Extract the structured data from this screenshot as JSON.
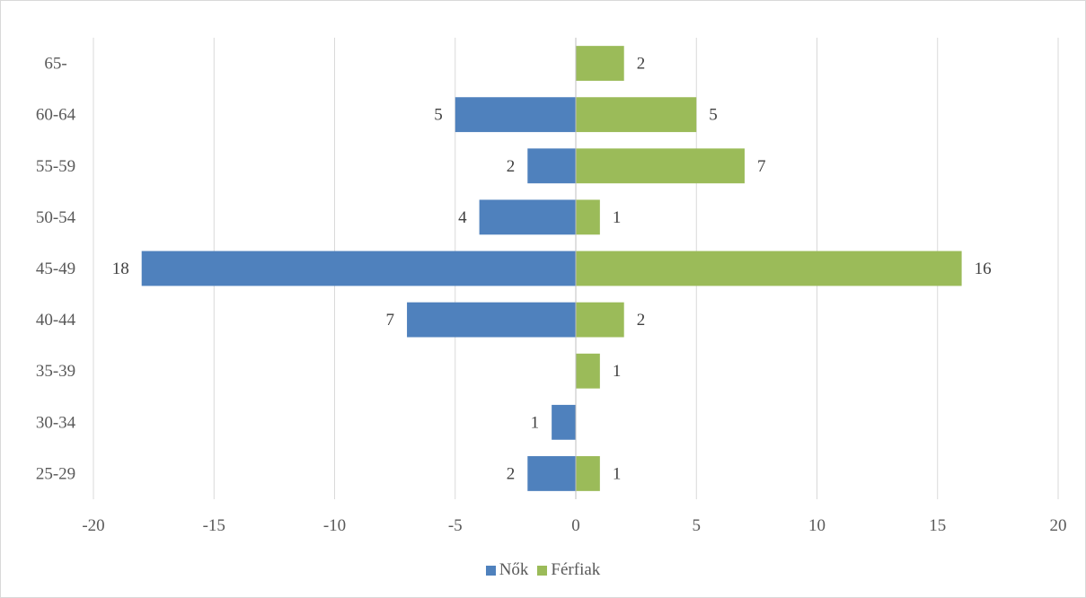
{
  "chart_data": {
    "type": "bar",
    "orientation": "horizontal",
    "categories": [
      "65-",
      "60-64",
      "55-59",
      "50-54",
      "45-49",
      "40-44",
      "35-39",
      "30-34",
      "25-29"
    ],
    "series": [
      {
        "name": "Nők",
        "values": [
          0,
          -5,
          -2,
          -4,
          -18,
          -7,
          0,
          -1,
          -2
        ],
        "labels": [
          "",
          "5",
          "2",
          "4",
          "18",
          "7",
          "",
          "1",
          "2"
        ],
        "color": "#4f81bd"
      },
      {
        "name": "Férfiak",
        "values": [
          2,
          5,
          7,
          1,
          16,
          2,
          1,
          0,
          1
        ],
        "labels": [
          "2",
          "5",
          "7",
          "1",
          "16",
          "2",
          "1",
          "",
          "1"
        ],
        "color": "#9bbb59"
      }
    ],
    "xlim": [
      -20,
      20
    ],
    "xticks": [
      -20,
      -15,
      -10,
      -5,
      0,
      5,
      10,
      15,
      20
    ],
    "grid": true,
    "legend_position": "bottom",
    "title": "",
    "xlabel": "",
    "ylabel": ""
  }
}
